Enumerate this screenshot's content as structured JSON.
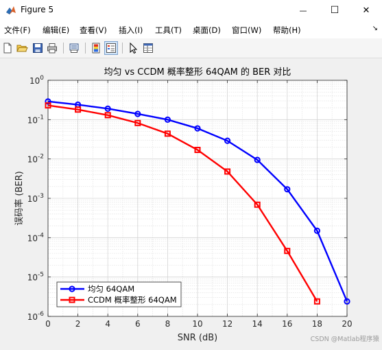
{
  "window": {
    "title": "Figure 5",
    "minimize_glyph": "—",
    "maximize_glyph": "☐",
    "close_glyph": "✕"
  },
  "menu": {
    "items": [
      "文件(F)",
      "编辑(E)",
      "查看(V)",
      "插入(I)",
      "工具(T)",
      "桌面(D)",
      "窗口(W)",
      "帮助(H)"
    ],
    "dock_glyph": "↘"
  },
  "toolbar": {
    "icons": [
      "new-file-icon",
      "open-folder-icon",
      "save-icon",
      "print-icon",
      "print-preview-icon",
      "insert-colorbar-icon",
      "insert-legend-icon",
      "edit-plot-arrow-icon",
      "property-inspector-icon"
    ]
  },
  "chart_data": {
    "type": "line",
    "title": "均匀 vs CCDM 概率整形 64QAM 的 BER 对比",
    "xlabel": "SNR (dB)",
    "ylabel": "误码率 (BER)",
    "xlim": [
      0,
      20
    ],
    "ylim": [
      1e-06,
      1
    ],
    "yscale": "log",
    "grid": true,
    "minor_grid": true,
    "x_ticks": [
      "0",
      "2",
      "4",
      "6",
      "8",
      "10",
      "12",
      "14",
      "16",
      "18",
      "20"
    ],
    "y_ticks": [
      {
        "base": "10",
        "exp": "0"
      },
      {
        "base": "10",
        "exp": "-1"
      },
      {
        "base": "10",
        "exp": "-2"
      },
      {
        "base": "10",
        "exp": "-3"
      },
      {
        "base": "10",
        "exp": "-4"
      },
      {
        "base": "10",
        "exp": "-5"
      },
      {
        "base": "10",
        "exp": "-6"
      }
    ],
    "legend_position": "bottom-left",
    "series": [
      {
        "name": "均匀 64QAM",
        "color": "#0000ff",
        "marker": "circle",
        "x": [
          0,
          2,
          4,
          6,
          8,
          10,
          12,
          14,
          16,
          18,
          20
        ],
        "y": [
          0.29,
          0.24,
          0.19,
          0.14,
          0.1,
          0.06,
          0.029,
          0.0095,
          0.0017,
          0.00015,
          2.4e-06
        ]
      },
      {
        "name": "CCDM 概率整形 64QAM",
        "color": "#ff0000",
        "marker": "square",
        "x": [
          0,
          2,
          4,
          6,
          8,
          10,
          12,
          14,
          16,
          18
        ],
        "y": [
          0.23,
          0.18,
          0.13,
          0.082,
          0.044,
          0.017,
          0.0048,
          0.00069,
          4.6e-05,
          2.4e-06
        ]
      }
    ]
  },
  "watermark": "CSDN @Matlab程序猿"
}
